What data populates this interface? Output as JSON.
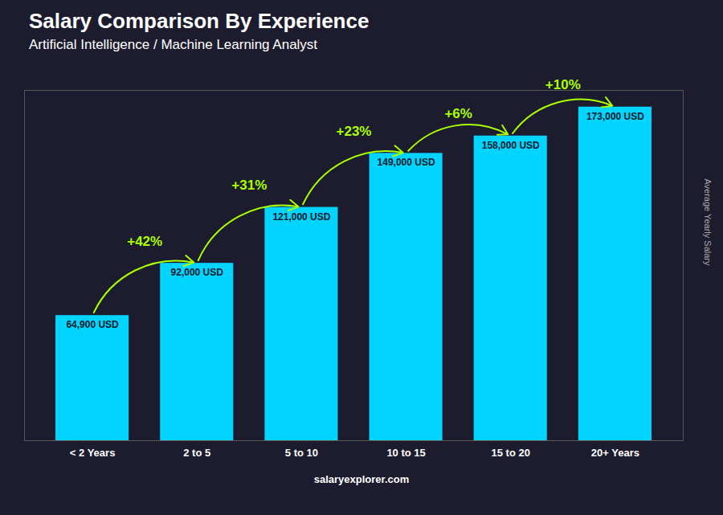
{
  "chart_data": {
    "type": "bar",
    "title": "Salary Comparison By Experience",
    "subtitle": "Artificial Intelligence / Machine Learning Analyst",
    "ylabel": "Average Yearly Salary",
    "footer": "salaryexplorer.com",
    "categories": [
      "< 2 Years",
      "2 to 5",
      "5 to 10",
      "10 to 15",
      "15 to 20",
      "20+ Years"
    ],
    "values": [
      64900,
      92000,
      121000,
      149000,
      158000,
      173000
    ],
    "value_labels": [
      "64,900 USD",
      "92,000 USD",
      "121,000 USD",
      "149,000 USD",
      "158,000 USD",
      "173,000 USD"
    ],
    "data_labels": true,
    "annotations": {
      "texts": [
        "+42%",
        "+31%",
        "+23%",
        "+6%",
        "+10%"
      ],
      "color": "#aaff00"
    },
    "color": "#00d4ff",
    "ylim": [
      0,
      181650
    ],
    "yticks": [],
    "grid": false,
    "tick_labels": "x"
  }
}
